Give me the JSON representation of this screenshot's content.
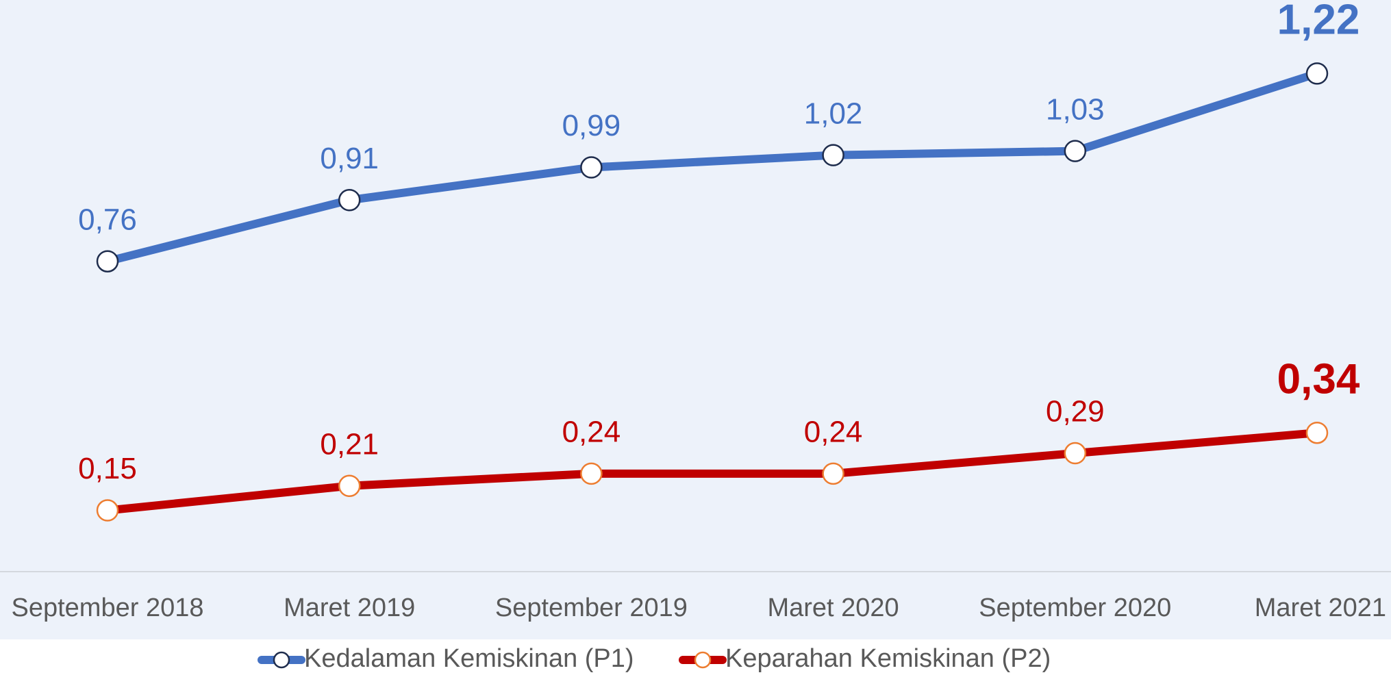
{
  "chart_data": {
    "type": "line",
    "categories": [
      "September 2018",
      "Maret 2019",
      "September 2019",
      "Maret 2020",
      "September 2020",
      "Maret 2021"
    ],
    "series": [
      {
        "name": "Kedalaman Kemiskinan (P1)",
        "color": "#4472c4",
        "marker_edge": "#1f2d4d",
        "values": [
          0.76,
          0.91,
          0.99,
          1.02,
          1.03,
          1.22
        ],
        "value_labels": [
          "0,76",
          "0,91",
          "0,99",
          "1,02",
          "1,03",
          "1,22"
        ]
      },
      {
        "name": "Keparahan Kemiskinan (P2)",
        "color": "#c00000",
        "marker_edge": "#ed7d31",
        "values": [
          0.15,
          0.21,
          0.24,
          0.24,
          0.29,
          0.34
        ],
        "value_labels": [
          "0,15",
          "0,21",
          "0,24",
          "0,24",
          "0,29",
          "0,34"
        ]
      }
    ],
    "ylim": [
      0,
      1.4
    ],
    "legend": "bottom"
  }
}
